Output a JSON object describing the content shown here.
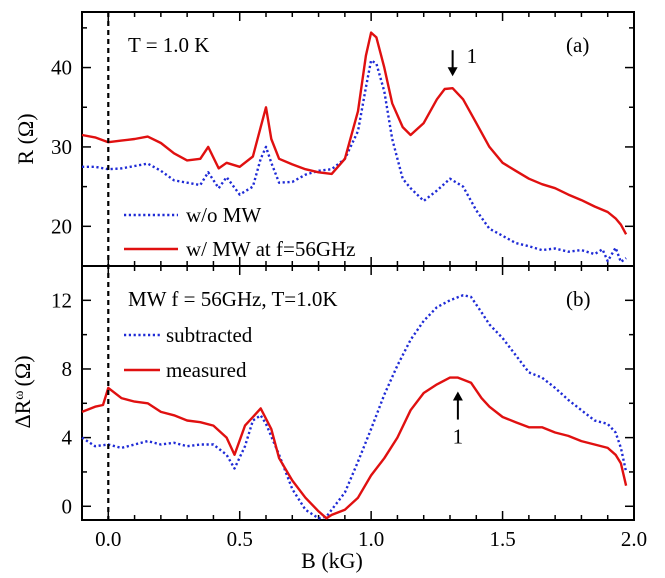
{
  "chart_data": [
    {
      "type": "line",
      "panel_label": "(a)",
      "annotation": "T = 1.0 K",
      "peak_marker": "1",
      "peak_marker_x": 1.31,
      "ylabel": "R (Ω)",
      "xlim": [
        -0.1,
        2.0
      ],
      "ylim": [
        15,
        47
      ],
      "yticks": [
        20,
        30,
        40
      ],
      "grid": false,
      "legend_position": "bottom-left",
      "series": [
        {
          "name": "w/o MW",
          "color": "#1f2bd6",
          "style": "dotted",
          "x": [
            -0.1,
            -0.05,
            0.0,
            0.05,
            0.1,
            0.15,
            0.2,
            0.25,
            0.3,
            0.35,
            0.38,
            0.42,
            0.45,
            0.5,
            0.55,
            0.58,
            0.6,
            0.62,
            0.65,
            0.7,
            0.75,
            0.8,
            0.85,
            0.9,
            0.95,
            0.98,
            1.0,
            1.02,
            1.05,
            1.08,
            1.12,
            1.15,
            1.2,
            1.25,
            1.3,
            1.35,
            1.4,
            1.45,
            1.5,
            1.55,
            1.6,
            1.65,
            1.7,
            1.75,
            1.8,
            1.85,
            1.88,
            1.9,
            1.93,
            1.95,
            1.97
          ],
          "y": [
            27.5,
            27.5,
            27.2,
            27.3,
            27.6,
            27.9,
            27.0,
            25.8,
            25.5,
            25.2,
            26.8,
            24.8,
            26.2,
            24.0,
            25.0,
            28.5,
            30.0,
            28.0,
            25.5,
            25.6,
            26.5,
            27.0,
            27.2,
            28.5,
            32.0,
            37.5,
            40.9,
            40.5,
            37.0,
            31.0,
            26.0,
            24.8,
            23.2,
            24.5,
            26.0,
            25.0,
            22.0,
            19.7,
            18.8,
            17.9,
            17.5,
            17.0,
            17.2,
            16.8,
            17.0,
            16.5,
            17.1,
            15.6,
            17.3,
            15.5,
            16.0
          ]
        },
        {
          "name": "w/ MW at f=56GHz",
          "color": "#e01010",
          "style": "solid",
          "x": [
            -0.1,
            -0.05,
            0.0,
            0.05,
            0.1,
            0.15,
            0.2,
            0.25,
            0.3,
            0.35,
            0.38,
            0.42,
            0.45,
            0.5,
            0.55,
            0.58,
            0.6,
            0.62,
            0.65,
            0.7,
            0.75,
            0.8,
            0.85,
            0.9,
            0.95,
            0.98,
            1.0,
            1.02,
            1.05,
            1.08,
            1.12,
            1.15,
            1.2,
            1.25,
            1.28,
            1.31,
            1.35,
            1.4,
            1.45,
            1.5,
            1.55,
            1.6,
            1.65,
            1.7,
            1.75,
            1.8,
            1.85,
            1.9,
            1.93,
            1.95,
            1.97
          ],
          "y": [
            31.5,
            31.2,
            30.6,
            30.8,
            31.0,
            31.3,
            30.5,
            29.2,
            28.3,
            28.5,
            30.0,
            27.3,
            28.0,
            27.5,
            28.8,
            32.5,
            35.0,
            31.0,
            28.5,
            27.8,
            27.2,
            26.8,
            26.6,
            28.5,
            34.5,
            41.5,
            44.4,
            43.8,
            40.0,
            35.5,
            32.5,
            31.5,
            33.0,
            36.0,
            37.3,
            37.4,
            36.0,
            33.0,
            30.0,
            28.0,
            27.0,
            26.0,
            25.3,
            24.8,
            24.0,
            23.3,
            22.5,
            21.8,
            21.0,
            20.2,
            19.0
          ]
        }
      ]
    },
    {
      "type": "line",
      "panel_label": "(b)",
      "annotation": "MW f = 56GHz, T=1.0K",
      "peak_marker": "1",
      "peak_marker_x": 1.33,
      "xlabel": "B (kG)",
      "ylabel": "ΔR",
      "ylabel_superscript": "ω",
      "ylabel_unit": "(Ω)",
      "xlim": [
        -0.1,
        2.0
      ],
      "xticks": [
        "0.0",
        "0.5",
        "1.0",
        "1.5",
        "2.0"
      ],
      "ylim": [
        -0.8,
        14
      ],
      "yticks": [
        0,
        4,
        8,
        12
      ],
      "grid": false,
      "legend_position": "top-left",
      "series": [
        {
          "name": "subtracted",
          "color": "#1f2bd6",
          "style": "dotted",
          "x": [
            -0.1,
            -0.05,
            0.0,
            0.05,
            0.1,
            0.15,
            0.2,
            0.25,
            0.3,
            0.35,
            0.4,
            0.45,
            0.48,
            0.52,
            0.55,
            0.58,
            0.6,
            0.65,
            0.7,
            0.75,
            0.8,
            0.83,
            0.85,
            0.9,
            0.95,
            1.0,
            1.05,
            1.1,
            1.15,
            1.2,
            1.25,
            1.3,
            1.35,
            1.38,
            1.42,
            1.45,
            1.5,
            1.55,
            1.6,
            1.65,
            1.7,
            1.75,
            1.8,
            1.85,
            1.9,
            1.93,
            1.95,
            1.97
          ],
          "y": [
            4.0,
            3.5,
            3.6,
            3.4,
            3.6,
            3.8,
            3.6,
            3.7,
            3.5,
            3.6,
            3.6,
            3.0,
            2.2,
            3.5,
            5.0,
            5.3,
            4.8,
            3.0,
            1.0,
            -0.2,
            -0.7,
            -0.6,
            -0.2,
            0.8,
            2.6,
            4.5,
            6.5,
            8.2,
            9.7,
            10.8,
            11.6,
            12.0,
            12.3,
            12.2,
            11.3,
            10.6,
            9.8,
            8.8,
            7.8,
            7.5,
            6.9,
            6.2,
            5.6,
            5.0,
            4.8,
            4.3,
            3.4,
            2.0
          ]
        },
        {
          "name": "measured",
          "color": "#e01010",
          "style": "solid",
          "x": [
            -0.1,
            -0.05,
            -0.02,
            0.0,
            0.05,
            0.1,
            0.15,
            0.2,
            0.25,
            0.3,
            0.35,
            0.4,
            0.45,
            0.48,
            0.52,
            0.55,
            0.58,
            0.62,
            0.65,
            0.7,
            0.75,
            0.8,
            0.83,
            0.85,
            0.9,
            0.95,
            1.0,
            1.05,
            1.1,
            1.15,
            1.2,
            1.25,
            1.3,
            1.33,
            1.38,
            1.42,
            1.45,
            1.5,
            1.55,
            1.6,
            1.65,
            1.7,
            1.75,
            1.8,
            1.85,
            1.9,
            1.93,
            1.95,
            1.97
          ],
          "y": [
            5.5,
            5.8,
            5.9,
            6.9,
            6.3,
            6.1,
            6.0,
            5.5,
            5.3,
            5.0,
            4.9,
            4.7,
            4.0,
            3.0,
            4.7,
            5.2,
            5.7,
            4.5,
            2.8,
            1.5,
            0.5,
            -0.3,
            -0.7,
            -0.5,
            -0.2,
            0.5,
            1.8,
            2.8,
            4.0,
            5.6,
            6.6,
            7.1,
            7.5,
            7.5,
            7.2,
            6.3,
            5.8,
            5.2,
            4.9,
            4.6,
            4.6,
            4.3,
            4.1,
            3.8,
            3.6,
            3.4,
            3.0,
            2.5,
            1.2
          ]
        }
      ]
    }
  ]
}
